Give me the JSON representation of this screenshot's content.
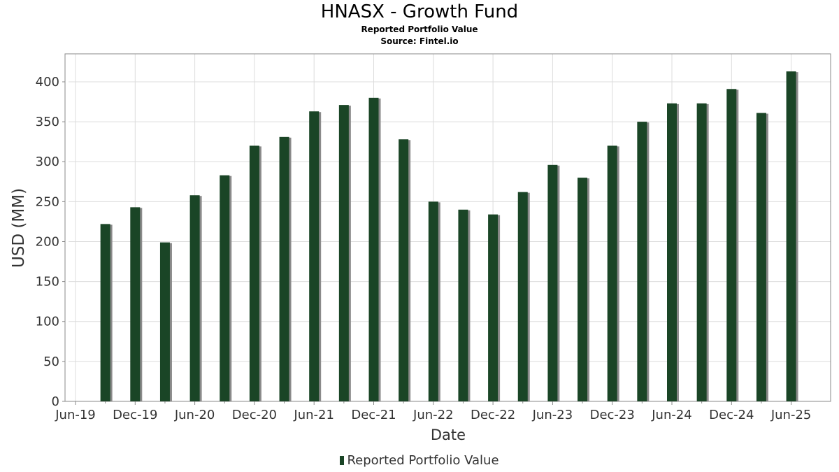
{
  "header": {
    "title": "HNASX - Growth Fund",
    "subtitle": "Reported Portfolio Value",
    "source": "Source: Fintel.io"
  },
  "legend": {
    "label": "Reported Portfolio Value"
  },
  "colors": {
    "bar": "#1a4526",
    "bar_shadow": "#8a8a8a",
    "grid": "#dcdcdc",
    "axis_text": "#333333"
  },
  "chart_data": {
    "type": "bar",
    "title": "HNASX - Growth Fund",
    "subtitle": "Reported Portfolio Value",
    "xlabel": "Date",
    "ylabel": "USD (MM)",
    "ylim": [
      0,
      435
    ],
    "yticks": [
      0,
      50,
      100,
      150,
      200,
      250,
      300,
      350,
      400
    ],
    "xticks": [
      "Jun-19",
      "Dec-19",
      "Jun-20",
      "Dec-20",
      "Jun-21",
      "Dec-21",
      "Jun-22",
      "Dec-22",
      "Jun-23",
      "Dec-23",
      "Jun-24",
      "Dec-24",
      "Jun-25"
    ],
    "grid": true,
    "legend_position": "bottom",
    "series": [
      {
        "name": "Reported Portfolio Value",
        "values": [
          222,
          243,
          199,
          258,
          283,
          320,
          331,
          363,
          371,
          380,
          328,
          250,
          240,
          234,
          262,
          296,
          280,
          320,
          350,
          373,
          373,
          391,
          361,
          413
        ]
      }
    ]
  }
}
